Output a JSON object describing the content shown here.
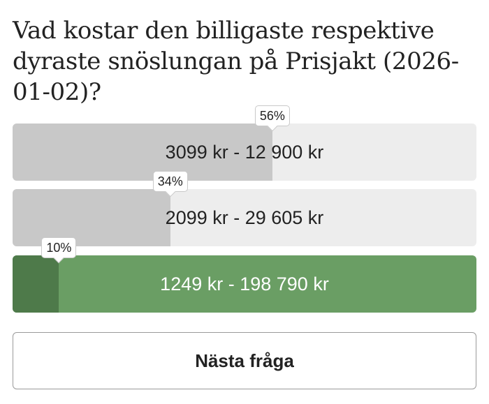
{
  "question": "Vad kostar den billigaste respektive dyraste snöslungan på Prisjakt (2026-01-02)?",
  "options": [
    {
      "label": "3099 kr - 12 900 kr",
      "percent": "56%",
      "share": 0.56,
      "state": "normal"
    },
    {
      "label": "2099 kr - 29 605 kr",
      "percent": "34%",
      "share": 0.34,
      "state": "normal"
    },
    {
      "label": "1249 kr - 198 790 kr",
      "percent": "10%",
      "share": 0.1,
      "state": "correct"
    }
  ],
  "next_button": {
    "label": "Nästa fråga"
  },
  "colors": {
    "bar_fill": "#c8c8c8",
    "bar_track": "#ededed",
    "correct_track": "#6a9e64",
    "correct_fill": "#4e7a4a"
  }
}
